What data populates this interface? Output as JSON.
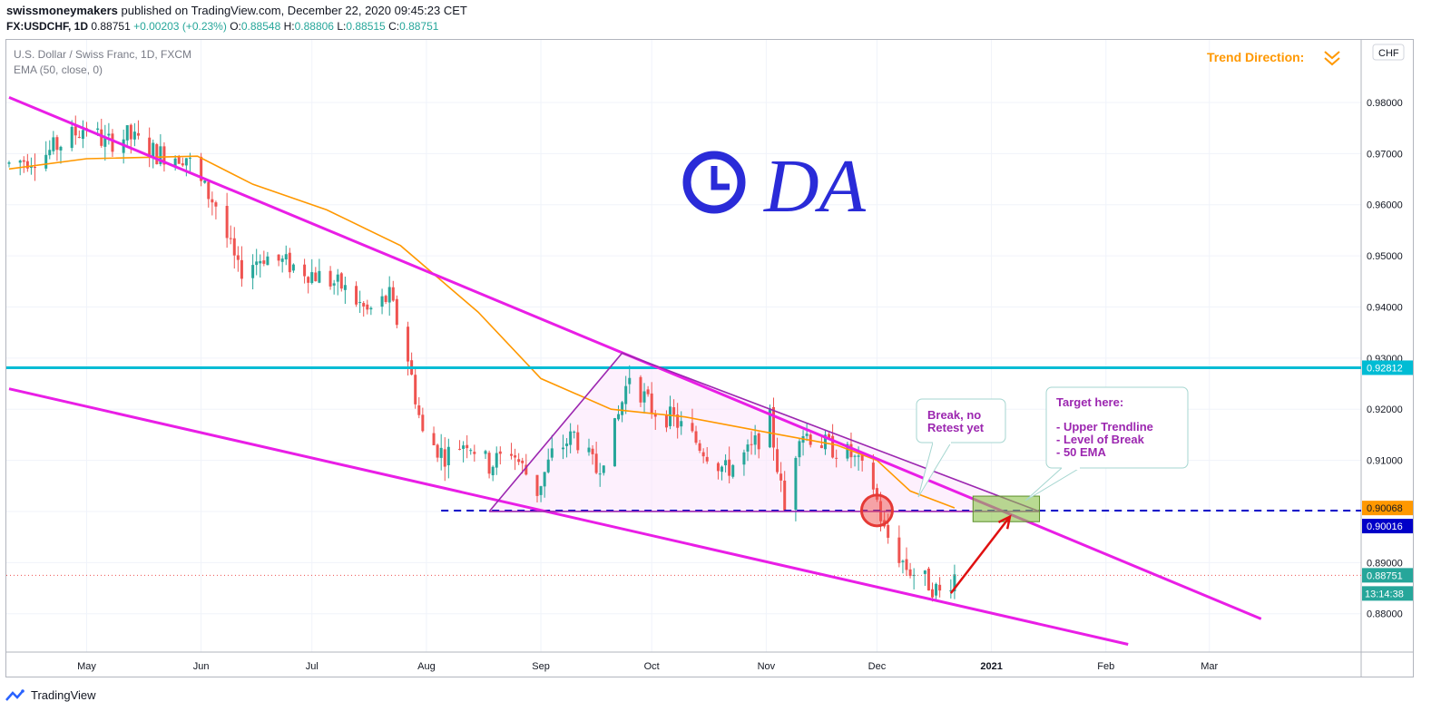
{
  "header": {
    "author": "swissmoneymakers",
    "published_text": "published on TradingView.com, December 22, 2020 09:45:23 CET",
    "symbol": "FX:USDCHF, 1D",
    "last": "0.88751",
    "change": "+0.00203 (+0.23%)",
    "o_label": "O:",
    "o_value": "0.88548",
    "h_label": "H:",
    "h_value": "0.88806",
    "l_label": "L:",
    "l_value": "0.88515",
    "c_label": "C:",
    "c_value": "0.88751"
  },
  "legend": {
    "instrument": "U.S. Dollar / Swiss Franc, 1D, FXCM",
    "indicator": "EMA (50, close, 0)"
  },
  "currency_button": "CHF",
  "trend_direction": "Trend Direction:",
  "handwriting": "DA",
  "annotations": {
    "break_line1": "Break, no",
    "break_line2": "Retest yet",
    "target_title": "Target here:",
    "target_item1": "- Upper Trendline",
    "target_item2": "- Level of Break",
    "target_item3": "- 50 EMA"
  },
  "price_labels": {
    "level_line": "0.92812",
    "ema_value": "0.90068",
    "break_level": "0.90016",
    "last_price": "0.88751",
    "countdown": "13:14:38"
  },
  "footer": {
    "brand": "TradingView"
  },
  "colors": {
    "up": "#26a69a",
    "down": "#ef5350",
    "ema": "#ff9800",
    "trendline": "#e91ee6",
    "wedge": "#9c27b0",
    "level": "#00bcd4",
    "break_dash": "#0000c8",
    "arrow": "#e01010",
    "target_box": "#8bc34a",
    "annotation_text": "#9c27b0",
    "trend_text": "#ff9800"
  },
  "chart_data": {
    "type": "candlestick",
    "title": "U.S. Dollar / Swiss Franc, 1D, FXCM",
    "y_ticks": [
      "0.98000",
      "0.97000",
      "0.96000",
      "0.95000",
      "0.94000",
      "0.93000",
      "0.92000",
      "0.91000",
      "0.90000",
      "0.89000",
      "0.88000"
    ],
    "x_ticks": [
      "May",
      "Jun",
      "Jul",
      "Aug",
      "Sep",
      "Oct",
      "Nov",
      "Dec",
      "2021",
      "Feb",
      "Mar"
    ],
    "ylim": [
      0.8735,
      0.9855
    ],
    "price_path": [
      [
        "2020-04-10",
        0.968
      ],
      [
        "2020-04-20",
        0.97
      ],
      [
        "2020-05-01",
        0.9755
      ],
      [
        "2020-05-06",
        0.972
      ],
      [
        "2020-05-12",
        0.9735
      ],
      [
        "2020-05-20",
        0.97
      ],
      [
        "2020-05-28",
        0.9695
      ],
      [
        "2020-06-01",
        0.964
      ],
      [
        "2020-06-05",
        0.96
      ],
      [
        "2020-06-11",
        0.947
      ],
      [
        "2020-06-18",
        0.95
      ],
      [
        "2020-06-26",
        0.948
      ],
      [
        "2020-07-03",
        0.946
      ],
      [
        "2020-07-09",
        0.944
      ],
      [
        "2020-07-16",
        0.939
      ],
      [
        "2020-07-22",
        0.942
      ],
      [
        "2020-07-27",
        0.93
      ],
      [
        "2020-07-31",
        0.915
      ],
      [
        "2020-08-06",
        0.911
      ],
      [
        "2020-08-12",
        0.914
      ],
      [
        "2020-08-18",
        0.909
      ],
      [
        "2020-08-24",
        0.912
      ],
      [
        "2020-08-31",
        0.904
      ],
      [
        "2020-09-04",
        0.911
      ],
      [
        "2020-09-10",
        0.915
      ],
      [
        "2020-09-16",
        0.908
      ],
      [
        "2020-09-21",
        0.916
      ],
      [
        "2020-09-25",
        0.927
      ],
      [
        "2020-10-01",
        0.92
      ],
      [
        "2020-10-07",
        0.918
      ],
      [
        "2020-10-14",
        0.913
      ],
      [
        "2020-10-21",
        0.908
      ],
      [
        "2020-10-28",
        0.912
      ],
      [
        "2020-11-02",
        0.918
      ],
      [
        "2020-11-06",
        0.9
      ],
      [
        "2020-11-10",
        0.916
      ],
      [
        "2020-11-17",
        0.913
      ],
      [
        "2020-11-24",
        0.911
      ],
      [
        "2020-11-30",
        0.905
      ],
      [
        "2020-12-03",
        0.896
      ],
      [
        "2020-12-09",
        0.889
      ],
      [
        "2020-12-15",
        0.886
      ],
      [
        "2020-12-18",
        0.884
      ],
      [
        "2020-12-22",
        0.8875
      ]
    ],
    "ema50_path": [
      [
        "2020-04-10",
        0.967
      ],
      [
        "2020-05-01",
        0.969
      ],
      [
        "2020-05-31",
        0.9695
      ],
      [
        "2020-06-15",
        0.964
      ],
      [
        "2020-07-05",
        0.959
      ],
      [
        "2020-07-25",
        0.952
      ],
      [
        "2020-08-15",
        0.939
      ],
      [
        "2020-09-01",
        0.926
      ],
      [
        "2020-09-20",
        0.92
      ],
      [
        "2020-10-10",
        0.9185
      ],
      [
        "2020-11-01",
        0.9155
      ],
      [
        "2020-11-20",
        0.913
      ],
      [
        "2020-12-01",
        0.91
      ],
      [
        "2020-12-10",
        0.904
      ],
      [
        "2020-12-22",
        0.9007
      ]
    ],
    "upper_trendline": [
      [
        "2020-04-10",
        0.981
      ],
      [
        "2021-03-15",
        0.879
      ]
    ],
    "lower_trendline": [
      [
        "2020-04-10",
        0.924
      ],
      [
        "2021-02-07",
        0.874
      ]
    ],
    "horizontal_level": 0.92812,
    "break_level": 0.90016,
    "wedge": {
      "apex": [
        "2020-09-23",
        0.931
      ],
      "left": [
        "2020-08-18",
        0.9
      ],
      "right": [
        "2021-01-14",
        0.9
      ]
    },
    "break_point": [
      "2020-12-01",
      0.9002
    ],
    "target_zone": {
      "x": [
        "2020-12-27",
        "2021-01-14"
      ],
      "y": [
        0.898,
        0.903
      ]
    },
    "arrow": {
      "from": [
        "2020-12-21",
        0.884
      ],
      "to": [
        "2021-01-06",
        0.899
      ]
    },
    "last_price": 0.88751,
    "ema_last": 0.90068
  }
}
